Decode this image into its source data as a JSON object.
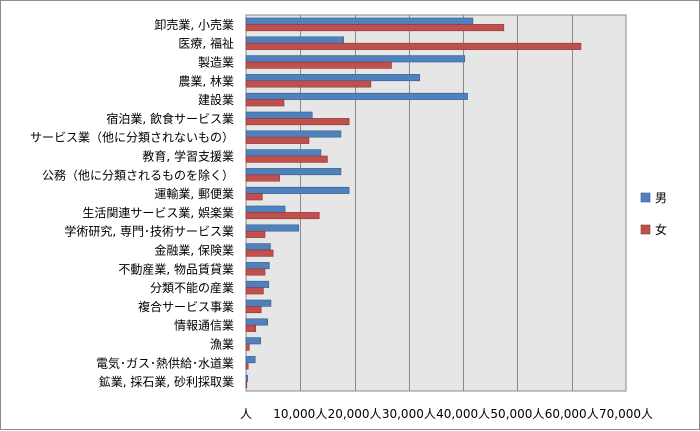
{
  "chart_data": {
    "type": "bar",
    "orientation": "horizontal",
    "categories": [
      "卸売業, 小売業",
      "医療, 福祉",
      "製造業",
      "農業, 林業",
      "建設業",
      "宿泊業, 飲食サービス業",
      "サービス業（他に分類されないもの）",
      "教育, 学習支援業",
      "公務（他に分類されるものを除く）",
      "運輸業, 郵便業",
      "生活関連サービス業, 娯楽業",
      "学術研究, 専門･技術サービス業",
      "金融業, 保険業",
      "不動産業, 物品賃貸業",
      "分類不能の産業",
      "複合サービス事業",
      "情報通信業",
      "漁業",
      "電気･ガス･熱供給･水道業",
      "鉱業, 採石業, 砂利採取業"
    ],
    "series": [
      {
        "name": "男",
        "color": "#4f81bd",
        "values": [
          41800,
          18000,
          40300,
          32000,
          40800,
          12200,
          17500,
          13800,
          17500,
          19000,
          7200,
          9700,
          4500,
          4300,
          4200,
          4600,
          4000,
          2700,
          1700,
          300
        ]
      },
      {
        "name": "女",
        "color": "#c0504d",
        "values": [
          47500,
          61700,
          26800,
          23000,
          7000,
          19000,
          11600,
          15000,
          6200,
          3000,
          13500,
          3500,
          5000,
          3500,
          3200,
          2800,
          1800,
          600,
          400,
          100
        ]
      }
    ],
    "xlim": [
      0,
      70000
    ],
    "xticks": [
      "人",
      "10,000人",
      "20,000人",
      "30,000人",
      "40,000人",
      "50,000人",
      "60,000人",
      "70,000人"
    ],
    "grid": true,
    "legend": "right"
  }
}
